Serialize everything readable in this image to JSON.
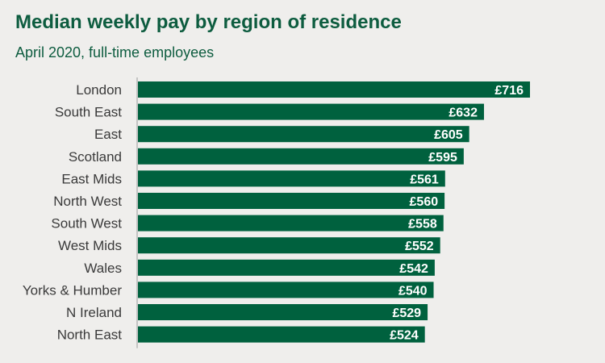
{
  "chart_data": {
    "type": "bar",
    "orientation": "horizontal",
    "title": "Median weekly pay by region of residence",
    "subtitle": "April 2020, full-time employees",
    "xlabel": "",
    "ylabel": "",
    "categories": [
      "London",
      "South East",
      "East",
      "Scotland",
      "East Mids",
      "North West",
      "South West",
      "West Mids",
      "Wales",
      "Yorks & Humber",
      "N Ireland",
      "North East"
    ],
    "values": [
      716,
      632,
      605,
      595,
      561,
      560,
      558,
      552,
      542,
      540,
      529,
      524
    ],
    "value_labels": [
      "£716",
      "£632",
      "£605",
      "£595",
      "£561",
      "£560",
      "£558",
      "£552",
      "£542",
      "£540",
      "£529",
      "£524"
    ],
    "xlim": [
      0,
      716
    ],
    "grid": false,
    "legend": "none",
    "bar_color": "#00613e"
  }
}
